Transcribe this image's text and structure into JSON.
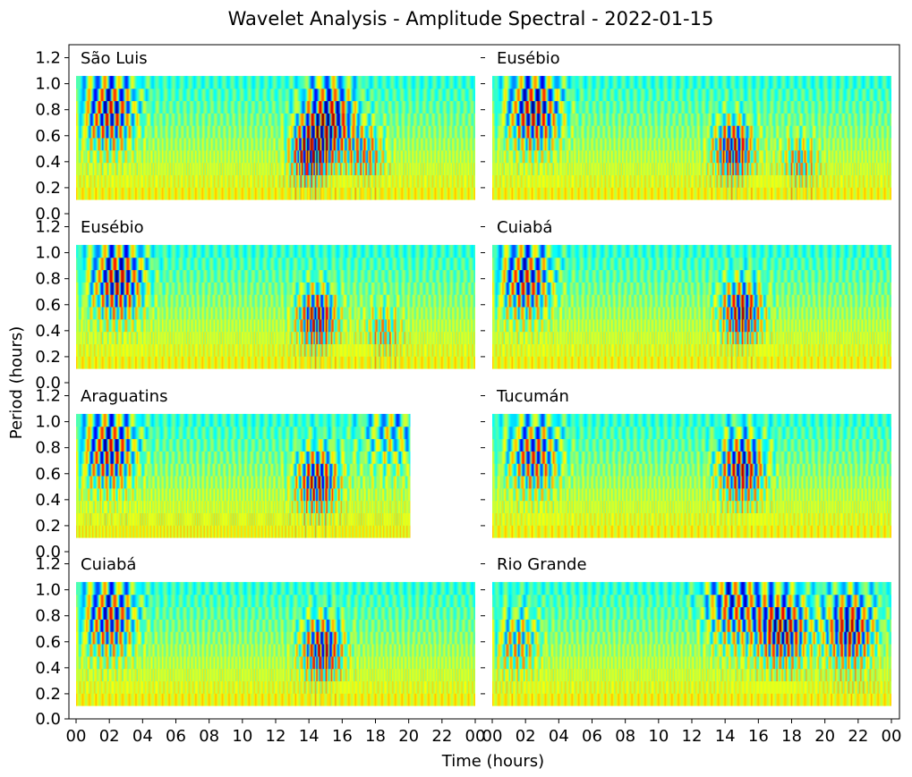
{
  "chart_data": {
    "type": "heatmap",
    "title": "Wavelet Analysis - Amplitude Spectral - 2022-01-15",
    "xlabel": "Time (hours)",
    "ylabel": "Period (hours)",
    "xlim": [
      0,
      24
    ],
    "ylim": [
      0,
      1.3
    ],
    "x_ticks": [
      "00",
      "02",
      "04",
      "06",
      "08",
      "10",
      "12",
      "14",
      "16",
      "18",
      "20",
      "22",
      "00"
    ],
    "y_ticks": [
      "0.0",
      "0.2",
      "0.4",
      "0.6",
      "0.8",
      "1.0",
      "1.2"
    ],
    "period_range": [
      0.11,
      1.06
    ],
    "colormap": "jet",
    "grid": false,
    "panels": [
      {
        "station": "São Luis",
        "time_end": 24,
        "features": [
          {
            "t": 2.0,
            "p": 0.8,
            "a": 0.95
          },
          {
            "t": 14.0,
            "p": 0.45,
            "a": 0.9
          },
          {
            "t": 15.2,
            "p": 0.75,
            "a": 1.0
          },
          {
            "t": 17.5,
            "p": 0.45,
            "a": 0.6
          }
        ]
      },
      {
        "station": "Eusébio",
        "time_end": 24,
        "features": [
          {
            "t": 2.5,
            "p": 0.8,
            "a": 1.0
          },
          {
            "t": 14.5,
            "p": 0.5,
            "a": 1.0
          },
          {
            "t": 18.5,
            "p": 0.4,
            "a": 0.6
          }
        ]
      },
      {
        "station": "Eusébio",
        "time_end": 24,
        "features": [
          {
            "t": 2.5,
            "p": 0.8,
            "a": 1.0
          },
          {
            "t": 14.5,
            "p": 0.5,
            "a": 1.0
          },
          {
            "t": 18.5,
            "p": 0.4,
            "a": 0.55
          }
        ]
      },
      {
        "station": "Cuiabá",
        "time_end": 24,
        "features": [
          {
            "t": 2.0,
            "p": 0.8,
            "a": 0.9
          },
          {
            "t": 15.0,
            "p": 0.55,
            "a": 1.0
          }
        ]
      },
      {
        "station": "Araguatins",
        "time_end": 20.1,
        "features": [
          {
            "t": 2.0,
            "p": 0.8,
            "a": 0.95
          },
          {
            "t": 14.5,
            "p": 0.55,
            "a": 1.0
          },
          {
            "t": 19.0,
            "p": 0.95,
            "a": 0.5
          }
        ]
      },
      {
        "station": "Tucumán",
        "time_end": 24,
        "features": [
          {
            "t": 2.5,
            "p": 0.75,
            "a": 0.85
          },
          {
            "t": 15.0,
            "p": 0.65,
            "a": 1.0
          }
        ]
      },
      {
        "station": "Cuiabá",
        "time_end": 24,
        "features": [
          {
            "t": 2.0,
            "p": 0.8,
            "a": 0.9
          },
          {
            "t": 14.8,
            "p": 0.55,
            "a": 1.0
          }
        ]
      },
      {
        "station": "Rio Grande",
        "time_end": 24,
        "features": [
          {
            "t": 1.5,
            "p": 0.6,
            "a": 0.6
          },
          {
            "t": 14.5,
            "p": 0.9,
            "a": 0.8
          },
          {
            "t": 17.5,
            "p": 0.7,
            "a": 1.0
          },
          {
            "t": 21.5,
            "p": 0.7,
            "a": 1.0
          }
        ]
      }
    ]
  }
}
